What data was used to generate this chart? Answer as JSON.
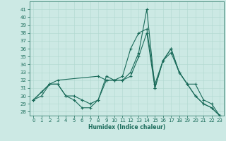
{
  "xlabel": "Humidex (Indice chaleur)",
  "background_color": "#cce9e4",
  "line_color": "#1a6b5a",
  "grid_color": "#b0d8d0",
  "xlim": [
    -0.5,
    23.5
  ],
  "ylim": [
    27.5,
    42.0
  ],
  "yticks": [
    28,
    29,
    30,
    31,
    32,
    33,
    34,
    35,
    36,
    37,
    38,
    39,
    40,
    41
  ],
  "xticks": [
    0,
    1,
    2,
    3,
    4,
    5,
    6,
    7,
    8,
    9,
    10,
    11,
    12,
    13,
    14,
    15,
    16,
    17,
    18,
    19,
    20,
    21,
    22,
    23
  ],
  "line1_x": [
    0,
    1,
    2,
    3,
    4,
    5,
    6,
    7,
    8,
    9,
    10,
    11,
    12,
    13,
    14,
    15,
    16,
    17,
    18,
    19,
    20,
    21,
    22,
    23
  ],
  "line1_y": [
    29.5,
    30.5,
    31.5,
    31.5,
    30.0,
    30.0,
    29.5,
    29.0,
    29.5,
    32.5,
    32.0,
    32.0,
    33.0,
    35.5,
    41.0,
    31.0,
    34.5,
    36.0,
    33.0,
    31.5,
    30.0,
    29.0,
    28.5,
    27.5
  ],
  "line2_x": [
    0,
    1,
    2,
    3,
    4,
    5,
    6,
    7,
    8,
    9,
    10,
    11,
    12,
    13,
    14,
    15,
    16,
    17,
    18,
    19,
    20,
    21,
    22,
    23
  ],
  "line2_y": [
    29.5,
    30.0,
    31.5,
    31.5,
    30.0,
    29.5,
    28.5,
    28.5,
    29.5,
    32.0,
    32.0,
    32.0,
    32.5,
    35.0,
    38.0,
    31.0,
    34.5,
    35.5,
    33.0,
    31.5,
    30.0,
    29.0,
    28.5,
    27.5
  ],
  "line3_x": [
    0,
    2,
    3,
    8,
    9,
    10,
    11,
    12,
    13,
    14,
    15,
    16,
    17,
    18,
    19,
    20,
    21,
    22,
    23
  ],
  "line3_y": [
    29.5,
    31.5,
    32.0,
    32.5,
    32.0,
    32.0,
    32.5,
    36.0,
    38.0,
    38.5,
    31.5,
    34.5,
    36.0,
    33.0,
    31.5,
    31.5,
    29.5,
    29.0,
    27.5
  ],
  "xlabel_fontsize": 5.5,
  "tick_fontsize": 5.0,
  "linewidth": 0.8,
  "markersize": 3.5
}
